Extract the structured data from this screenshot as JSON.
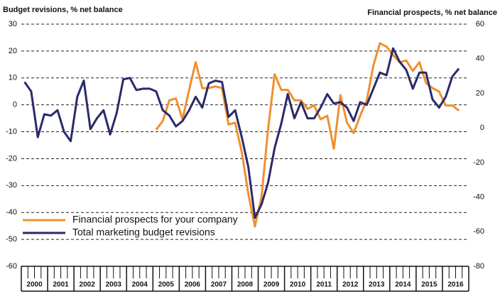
{
  "chart_data": {
    "type": "line",
    "y_label": "Budget revisions, % net balance",
    "y2_label": "Financial prospects, % net balance",
    "categories": [
      "2000",
      null,
      null,
      null,
      "2001",
      null,
      null,
      null,
      "2002",
      null,
      null,
      null,
      "2003",
      null,
      null,
      null,
      "2004",
      null,
      null,
      null,
      "2005",
      null,
      null,
      null,
      "2006",
      null,
      null,
      null,
      "2007",
      null,
      null,
      null,
      "2008",
      null,
      null,
      null,
      "2009",
      null,
      null,
      null,
      "2010",
      null,
      null,
      null,
      "2011",
      null,
      null,
      null,
      "2012",
      null,
      null,
      null,
      "2013",
      null,
      null,
      null,
      "2014",
      null,
      null,
      null,
      "2015",
      null,
      null,
      null,
      "2016",
      null,
      null,
      null
    ],
    "series": [
      {
        "name": "Financial prospects for your company",
        "color": "#f0902e",
        "axis": "y2",
        "values": [
          null,
          null,
          null,
          null,
          null,
          null,
          null,
          null,
          null,
          null,
          null,
          null,
          null,
          null,
          null,
          null,
          null,
          null,
          null,
          null,
          -1,
          4,
          16,
          17,
          5,
          22,
          38,
          23,
          23,
          24,
          23,
          2,
          3,
          -14,
          -38,
          -57,
          -40,
          -1,
          31,
          22,
          22,
          16,
          16,
          11,
          13,
          5,
          7,
          -12,
          19,
          3,
          -3,
          7,
          16,
          36,
          49,
          47,
          42,
          38,
          39,
          33,
          38,
          26,
          23,
          21,
          13,
          13,
          10,
          null
        ]
      },
      {
        "name": "Total marketing budget revisions",
        "color": "#2b2a6b",
        "values": [
          8.5,
          5,
          -12,
          -3.5,
          -4,
          -2,
          -10,
          -13.5,
          3,
          9,
          -9,
          -5,
          -2,
          -11,
          -3,
          9.5,
          10,
          5.5,
          6,
          6,
          5,
          -2,
          -4,
          -8,
          -6,
          -2,
          3,
          -1,
          8,
          9,
          8.5,
          -4.5,
          -2,
          -12,
          -23,
          -42,
          -37,
          -29,
          -16,
          -7,
          4,
          -5,
          1,
          -5,
          -5,
          -1,
          4,
          0.5,
          1,
          -1,
          -6,
          1,
          0,
          6,
          12,
          11,
          21,
          16,
          13,
          6,
          12,
          12,
          2,
          -1,
          3,
          10.5,
          13.5,
          null
        ]
      }
    ],
    "ylim": [
      -60,
      30
    ],
    "yticks": [
      30,
      20,
      10,
      0,
      -10,
      -20,
      -30,
      -40,
      -50,
      -60
    ],
    "y2lim": [
      -80,
      60
    ],
    "y2ticks": [
      60,
      40,
      20,
      0,
      -20,
      -40,
      -60,
      -80
    ],
    "grid": true,
    "legend": "lower left"
  }
}
